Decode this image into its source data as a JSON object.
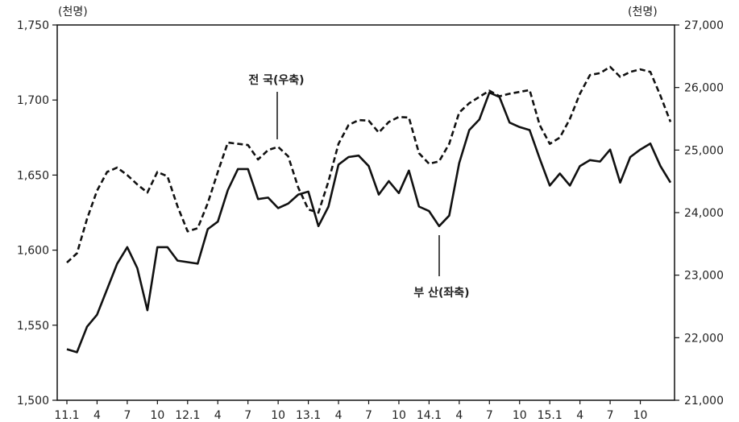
{
  "chart_data": {
    "type": "line",
    "left_axis": {
      "unit": "(천명)",
      "ylim": [
        1500,
        1750
      ],
      "ticks": [
        "1,500",
        "1,550",
        "1,600",
        "1,650",
        "1,700",
        "1,750"
      ]
    },
    "right_axis": {
      "unit": "(천명)",
      "ylim": [
        21000,
        27000
      ],
      "ticks": [
        "21,000",
        "22,000",
        "23,000",
        "24,000",
        "25,000",
        "26,000",
        "27,000"
      ]
    },
    "x_tick_labels": [
      "11.1",
      "4",
      "7",
      "10",
      "12.1",
      "4",
      "7",
      "10",
      "13.1",
      "4",
      "7",
      "10",
      "14.1",
      "4",
      "7",
      "10",
      "15.1",
      "4",
      "7",
      "10"
    ],
    "series": [
      {
        "name": "부 산(좌축)",
        "axis": "left",
        "style": "solid",
        "values": [
          1534,
          1532,
          1549,
          1557,
          1574,
          1591,
          1602,
          1588,
          1560,
          1602,
          1602,
          1593,
          1592,
          1591,
          1614,
          1619,
          1640,
          1654,
          1654,
          1634,
          1635,
          1628,
          1631,
          1637,
          1639,
          1616,
          1629,
          1657,
          1662,
          1663,
          1656,
          1637,
          1646,
          1638,
          1653,
          1629,
          1626,
          1616,
          1623,
          1658,
          1680,
          1687,
          1705,
          1702,
          1685,
          1682,
          1680,
          1661,
          1643,
          1651,
          1643,
          1656,
          1660,
          1659,
          1667,
          1645,
          1662,
          1667,
          1671,
          1656,
          1645
        ]
      },
      {
        "name": "전 국(우축)",
        "axis": "right",
        "style": "dashed",
        "values": [
          23200,
          23350,
          23900,
          24350,
          24650,
          24720,
          24600,
          24450,
          24320,
          24650,
          24580,
          24100,
          23700,
          23750,
          24150,
          24650,
          25120,
          25100,
          25080,
          24850,
          25000,
          25050,
          24900,
          24400,
          24050,
          24000,
          24500,
          25100,
          25400,
          25480,
          25470,
          25280,
          25450,
          25530,
          25520,
          24950,
          24780,
          24820,
          25100,
          25600,
          25750,
          25850,
          25950,
          25860,
          25900,
          25930,
          25960,
          25400,
          25100,
          25200,
          25500,
          25900,
          26200,
          26230,
          26330,
          26170,
          26250,
          26290,
          26250,
          25870,
          25450
        ]
      }
    ],
    "annotations": [
      {
        "text": "전 국(우축)",
        "series": 1
      },
      {
        "text": "부 산(좌축)",
        "series": 0
      }
    ]
  }
}
